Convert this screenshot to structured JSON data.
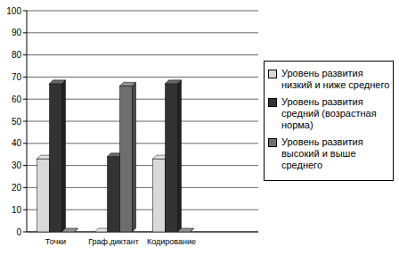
{
  "chart_data": {
    "type": "bar",
    "categories": [
      "Точки",
      "Граф.диктант",
      "Кодирование",
      null
    ],
    "series": [
      {
        "name": "Уровень развития низкий и ниже среднего",
        "color": "#d9d9d9",
        "values": [
          33,
          0,
          33,
          null
        ]
      },
      {
        "name": "Уровень развития средний (возрастная норма)",
        "color": "#333333",
        "values": [
          67,
          34,
          67,
          null
        ]
      },
      {
        "name": "Уровень развития высокий и выше среднего",
        "color": "#6e6e6e",
        "values": [
          0,
          66,
          0,
          null
        ]
      }
    ],
    "ylim": [
      0,
      100
    ],
    "yticks": [
      0,
      10,
      20,
      30,
      40,
      50,
      60,
      70,
      80,
      90,
      100
    ],
    "grid": true,
    "legend": "right"
  }
}
